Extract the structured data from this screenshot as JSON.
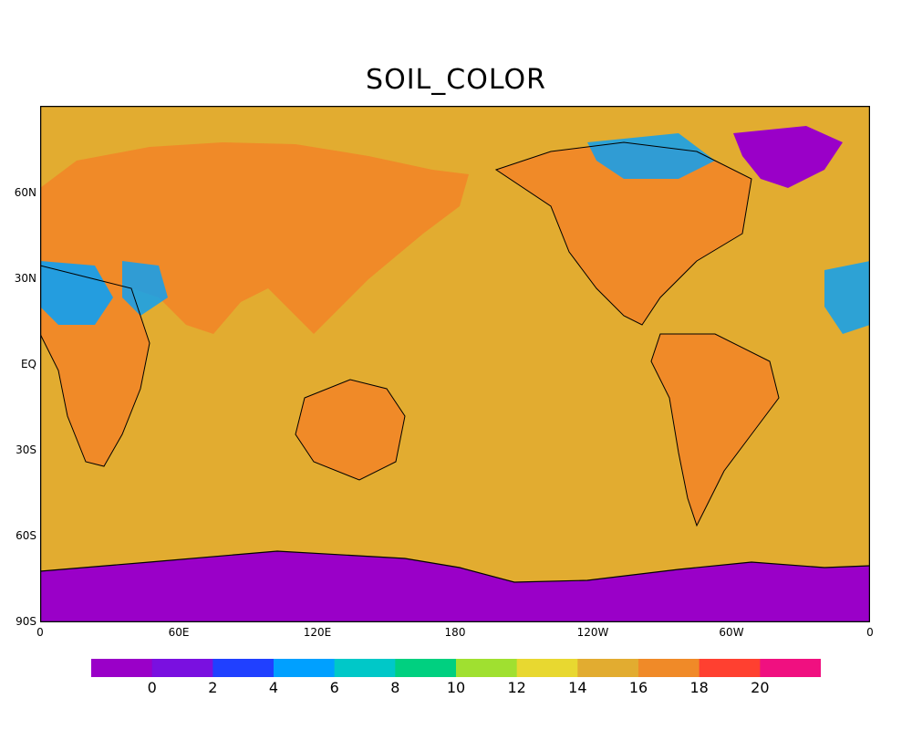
{
  "title": "SOIL_COLOR",
  "map": {
    "projection": "equirectangular, centered on 180",
    "background_value_color": "#e2ac30",
    "y_ticks": [
      "60N",
      "30N",
      "EQ",
      "30S",
      "60S",
      "90S"
    ],
    "x_ticks": [
      "0",
      "60E",
      "120E",
      "180",
      "120W",
      "60W",
      "0"
    ]
  },
  "colorbar": {
    "colors": [
      "#9a00c8",
      "#7a10e0",
      "#2040ff",
      "#00a0ff",
      "#00c8c8",
      "#00d080",
      "#a0e030",
      "#e8d830",
      "#e2ac30",
      "#f08a28",
      "#ff4030",
      "#f01080"
    ],
    "labels": [
      "0",
      "2",
      "4",
      "6",
      "8",
      "10",
      "12",
      "14",
      "16",
      "18",
      "20"
    ]
  },
  "colors": {
    "antarctica": "#9a00c8",
    "greenland": "#9a00c8",
    "ocean_fill": "#e2ac30",
    "land_mid": "#f08a28",
    "land_high": "#ff4030",
    "land_low": "#00a0ff"
  }
}
